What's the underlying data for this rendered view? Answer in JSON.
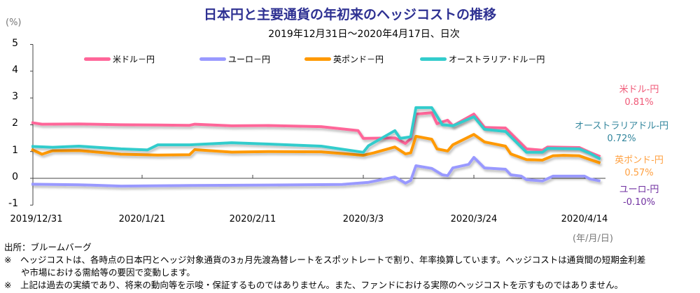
{
  "chart_data": {
    "type": "line",
    "title": "日本円と主要通貨の年初来のヘッジコストの推移",
    "subtitle": "2019年12月31日～2020年4月17日、日次",
    "ylabel": "(%)",
    "xlabel": "(年/月/日)",
    "ylim": [
      -1,
      5
    ],
    "yticks": [
      "5",
      "4",
      "3",
      "2",
      "1",
      "0",
      "-1"
    ],
    "xticks": [
      {
        "date": "2019-12-31",
        "label": "2019/12/31"
      },
      {
        "date": "2020-01-21",
        "label": "2020/1/21"
      },
      {
        "date": "2020-02-11",
        "label": "2020/2/11"
      },
      {
        "date": "2020-03-03",
        "label": "2020/3/3"
      },
      {
        "date": "2020-03-24",
        "label": "2020/3/24"
      },
      {
        "date": "2020-04-14",
        "label": "2020/4/14"
      }
    ],
    "grid": false,
    "legend": "top",
    "series": [
      {
        "name": "米ドル－円",
        "color": "#ff6699",
        "end_label": "米ドル-円",
        "end_value": "0.81%",
        "label_color": "#f05a78",
        "points": [
          [
            "2019-12-31",
            2.08
          ],
          [
            "2020-01-02",
            2.02
          ],
          [
            "2020-01-09",
            2.03
          ],
          [
            "2020-01-17",
            2.0
          ],
          [
            "2020-01-24",
            1.99
          ],
          [
            "2020-01-30",
            1.98
          ],
          [
            "2020-01-31",
            2.02
          ],
          [
            "2020-02-07",
            1.96
          ],
          [
            "2020-02-14",
            1.97
          ],
          [
            "2020-02-24",
            1.93
          ],
          [
            "2020-03-02",
            1.78
          ],
          [
            "2020-03-03",
            1.49
          ],
          [
            "2020-03-05",
            1.5
          ],
          [
            "2020-03-09",
            1.51
          ],
          [
            "2020-03-11",
            1.3
          ],
          [
            "2020-03-12",
            1.48
          ],
          [
            "2020-03-13",
            2.4
          ],
          [
            "2020-03-16",
            2.45
          ],
          [
            "2020-03-17",
            2.04
          ],
          [
            "2020-03-19",
            2.17
          ],
          [
            "2020-03-20",
            1.96
          ],
          [
            "2020-03-24",
            2.4
          ],
          [
            "2020-03-26",
            1.9
          ],
          [
            "2020-03-30",
            1.88
          ],
          [
            "2020-04-03",
            1.1
          ],
          [
            "2020-04-06",
            1.05
          ],
          [
            "2020-04-07",
            1.17
          ],
          [
            "2020-04-13",
            1.15
          ],
          [
            "2020-04-15",
            0.97
          ],
          [
            "2020-04-17",
            0.81
          ]
        ]
      },
      {
        "name": "ユーロ－円",
        "color": "#9999ff",
        "end_label": "ユーロ-円",
        "end_value": "-0.10%",
        "label_color": "#7030a0",
        "points": [
          [
            "2019-12-31",
            -0.22
          ],
          [
            "2020-01-09",
            -0.24
          ],
          [
            "2020-01-17",
            -0.29
          ],
          [
            "2020-01-30",
            -0.27
          ],
          [
            "2020-02-14",
            -0.25
          ],
          [
            "2020-02-28",
            -0.23
          ],
          [
            "2020-03-04",
            -0.15
          ],
          [
            "2020-03-09",
            0.05
          ],
          [
            "2020-03-11",
            -0.18
          ],
          [
            "2020-03-12",
            -0.08
          ],
          [
            "2020-03-13",
            0.47
          ],
          [
            "2020-03-16",
            0.37
          ],
          [
            "2020-03-18",
            0.13
          ],
          [
            "2020-03-19",
            0.1
          ],
          [
            "2020-03-20",
            0.39
          ],
          [
            "2020-03-23",
            0.52
          ],
          [
            "2020-03-24",
            0.78
          ],
          [
            "2020-03-26",
            0.39
          ],
          [
            "2020-03-30",
            0.34
          ],
          [
            "2020-03-31",
            0.13
          ],
          [
            "2020-04-02",
            0.08
          ],
          [
            "2020-04-03",
            -0.05
          ],
          [
            "2020-04-06",
            -0.1
          ],
          [
            "2020-04-08",
            0.08
          ],
          [
            "2020-04-14",
            0.08
          ],
          [
            "2020-04-15",
            -0.02
          ],
          [
            "2020-04-17",
            -0.1
          ]
        ]
      },
      {
        "name": "英ポンド－円",
        "color": "#ff9900",
        "end_label": "英ポンド-円",
        "end_value": "0.57%",
        "label_color": "#ffa040",
        "points": [
          [
            "2019-12-31",
            1.08
          ],
          [
            "2020-01-02",
            0.9
          ],
          [
            "2020-01-04",
            1.03
          ],
          [
            "2020-01-09",
            1.04
          ],
          [
            "2020-01-17",
            0.9
          ],
          [
            "2020-01-24",
            0.87
          ],
          [
            "2020-01-30",
            0.88
          ],
          [
            "2020-01-31",
            1.07
          ],
          [
            "2020-02-07",
            0.98
          ],
          [
            "2020-02-14",
            1.0
          ],
          [
            "2020-02-24",
            0.99
          ],
          [
            "2020-03-03",
            0.86
          ],
          [
            "2020-03-05",
            0.95
          ],
          [
            "2020-03-09",
            1.17
          ],
          [
            "2020-03-11",
            0.91
          ],
          [
            "2020-03-12",
            0.95
          ],
          [
            "2020-03-13",
            1.57
          ],
          [
            "2020-03-16",
            1.46
          ],
          [
            "2020-03-17",
            1.1
          ],
          [
            "2020-03-19",
            1.02
          ],
          [
            "2020-03-20",
            1.25
          ],
          [
            "2020-03-24",
            1.64
          ],
          [
            "2020-03-26",
            1.36
          ],
          [
            "2020-03-30",
            1.2
          ],
          [
            "2020-03-31",
            0.91
          ],
          [
            "2020-04-03",
            0.7
          ],
          [
            "2020-04-06",
            0.68
          ],
          [
            "2020-04-08",
            0.84
          ],
          [
            "2020-04-10",
            0.86
          ],
          [
            "2020-04-13",
            0.84
          ],
          [
            "2020-04-17",
            0.57
          ]
        ]
      },
      {
        "name": "オーストラリア･ドル－円",
        "color": "#33cccc",
        "end_label": "オーストラリアドル-円",
        "end_value": "0.72%",
        "label_color": "#31859c",
        "points": [
          [
            "2019-12-31",
            1.19
          ],
          [
            "2020-01-04",
            1.16
          ],
          [
            "2020-01-09",
            1.2
          ],
          [
            "2020-01-17",
            1.1
          ],
          [
            "2020-01-22",
            1.06
          ],
          [
            "2020-01-24",
            1.25
          ],
          [
            "2020-01-30",
            1.25
          ],
          [
            "2020-02-07",
            1.33
          ],
          [
            "2020-02-14",
            1.28
          ],
          [
            "2020-02-24",
            1.2
          ],
          [
            "2020-03-03",
            0.97
          ],
          [
            "2020-03-04",
            1.22
          ],
          [
            "2020-03-09",
            1.78
          ],
          [
            "2020-03-10",
            1.49
          ],
          [
            "2020-03-12",
            1.55
          ],
          [
            "2020-03-13",
            2.64
          ],
          [
            "2020-03-16",
            2.64
          ],
          [
            "2020-03-18",
            2.0
          ],
          [
            "2020-03-20",
            1.96
          ],
          [
            "2020-03-24",
            2.3
          ],
          [
            "2020-03-26",
            1.83
          ],
          [
            "2020-03-30",
            1.75
          ],
          [
            "2020-04-03",
            0.97
          ],
          [
            "2020-04-06",
            0.97
          ],
          [
            "2020-04-07",
            1.12
          ],
          [
            "2020-04-13",
            1.1
          ],
          [
            "2020-04-15",
            0.94
          ],
          [
            "2020-04-17",
            0.72
          ]
        ]
      }
    ]
  },
  "notes": {
    "source": "出所：ブルームバーグ",
    "note1a": "※　ヘッジコストは、各時点の日本円とヘッジ対象通貨の3ヵ月先渡為替レートをスポットレートで割り、年率換算しています。ヘッジコストは通貨間の短期金利差",
    "note1b": "や市場における需給等の要因で変動します。",
    "note2": "※　上記は過去の実績であり、将来の動向等を示唆・保証するものではありません。また、ファンドにおける実際のヘッジコストを示すものではありません。"
  }
}
